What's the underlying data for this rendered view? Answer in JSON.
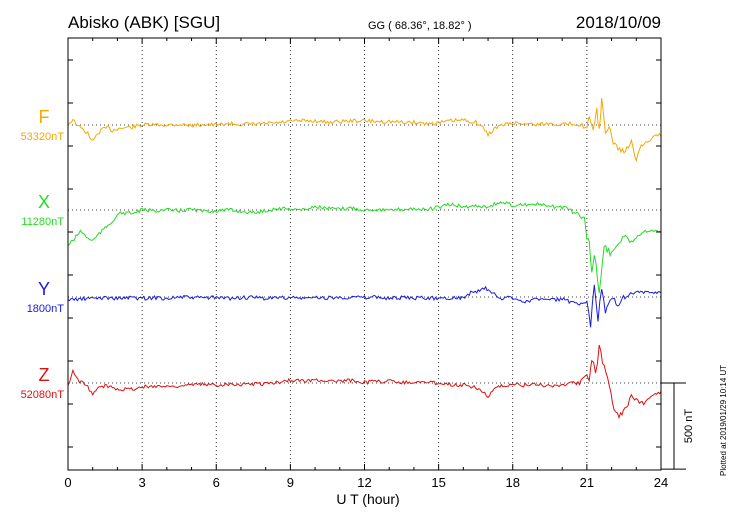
{
  "chart_data": {
    "type": "line",
    "title": "Abisko (ABK)  [SGU]",
    "coords": "GG ( 68.36°,  18.82° )",
    "date": "2018/10/09",
    "xlabel": "U T (hour)",
    "xlim": [
      0,
      24
    ],
    "xticks": [
      0,
      3,
      6,
      9,
      12,
      15,
      18,
      21,
      24
    ],
    "scale_label": "500 nT",
    "plotted_text": "Plotted at 2019/01/29 10:14 UT",
    "grid": true,
    "series": [
      {
        "name": "F",
        "baseline_label": "53320nT",
        "color": "#f5a800",
        "units": "nT offset from baseline",
        "points": [
          [
            0,
            4
          ],
          [
            0.2,
            40
          ],
          [
            0.4,
            -10
          ],
          [
            0.6,
            -30
          ],
          [
            0.8,
            -60
          ],
          [
            1.0,
            -120
          ],
          [
            1.2,
            -60
          ],
          [
            1.4,
            -30
          ],
          [
            1.6,
            -20
          ],
          [
            1.8,
            -40
          ],
          [
            2.0,
            -25
          ],
          [
            2.3,
            -20
          ],
          [
            2.6,
            -15
          ],
          [
            3.0,
            0
          ],
          [
            3.5,
            0
          ],
          [
            4.0,
            0
          ],
          [
            4.5,
            5
          ],
          [
            5.0,
            -5
          ],
          [
            5.5,
            5
          ],
          [
            6.0,
            0
          ],
          [
            6.5,
            10
          ],
          [
            7.0,
            5
          ],
          [
            7.5,
            5
          ],
          [
            8.0,
            10
          ],
          [
            8.5,
            15
          ],
          [
            9.0,
            25
          ],
          [
            9.5,
            30
          ],
          [
            10.0,
            30
          ],
          [
            10.5,
            20
          ],
          [
            11.0,
            25
          ],
          [
            11.5,
            30
          ],
          [
            12.0,
            30
          ],
          [
            12.5,
            25
          ],
          [
            13.0,
            25
          ],
          [
            13.5,
            20
          ],
          [
            14.0,
            20
          ],
          [
            14.5,
            10
          ],
          [
            15.0,
            15
          ],
          [
            15.5,
            30
          ],
          [
            16.0,
            35
          ],
          [
            16.5,
            20
          ],
          [
            16.8,
            -20
          ],
          [
            17.0,
            -70
          ],
          [
            17.3,
            -20
          ],
          [
            17.6,
            0
          ],
          [
            18.0,
            15
          ],
          [
            18.5,
            10
          ],
          [
            19.0,
            5
          ],
          [
            19.5,
            10
          ],
          [
            20.0,
            5
          ],
          [
            20.5,
            10
          ],
          [
            20.8,
            0
          ],
          [
            21.0,
            -30
          ],
          [
            21.1,
            60
          ],
          [
            21.25,
            -60
          ],
          [
            21.4,
            100
          ],
          [
            21.5,
            -30
          ],
          [
            21.6,
            180
          ],
          [
            21.75,
            -80
          ],
          [
            21.9,
            0
          ],
          [
            22.0,
            -100
          ],
          [
            22.2,
            -150
          ],
          [
            22.5,
            -200
          ],
          [
            22.8,
            -120
          ],
          [
            23.0,
            -250
          ],
          [
            23.2,
            -150
          ],
          [
            23.5,
            -120
          ],
          [
            23.8,
            -60
          ],
          [
            24,
            -80
          ]
        ]
      },
      {
        "name": "X",
        "baseline_label": "11280nT",
        "color": "#22dd22",
        "units": "nT offset from baseline",
        "points": [
          [
            0,
            -250
          ],
          [
            0.2,
            -220
          ],
          [
            0.5,
            -150
          ],
          [
            0.8,
            -200
          ],
          [
            1.0,
            -220
          ],
          [
            1.2,
            -180
          ],
          [
            1.5,
            -130
          ],
          [
            1.8,
            -80
          ],
          [
            2.0,
            -30
          ],
          [
            2.3,
            -20
          ],
          [
            2.6,
            -25
          ],
          [
            3.0,
            0
          ],
          [
            3.5,
            -5
          ],
          [
            4.0,
            0
          ],
          [
            4.5,
            -5
          ],
          [
            5.0,
            5
          ],
          [
            5.5,
            -10
          ],
          [
            6.0,
            -5
          ],
          [
            6.5,
            0
          ],
          [
            7.0,
            -10
          ],
          [
            7.5,
            -20
          ],
          [
            8.0,
            -5
          ],
          [
            8.5,
            10
          ],
          [
            9.0,
            10
          ],
          [
            9.5,
            0
          ],
          [
            10.0,
            25
          ],
          [
            10.5,
            10
          ],
          [
            11.0,
            5
          ],
          [
            11.5,
            15
          ],
          [
            12.0,
            0
          ],
          [
            12.5,
            5
          ],
          [
            13.0,
            -5
          ],
          [
            13.5,
            5
          ],
          [
            14.0,
            10
          ],
          [
            14.5,
            0
          ],
          [
            15.0,
            20
          ],
          [
            15.5,
            40
          ],
          [
            16.0,
            20
          ],
          [
            16.5,
            30
          ],
          [
            17.0,
            25
          ],
          [
            17.5,
            55
          ],
          [
            18.0,
            35
          ],
          [
            18.5,
            40
          ],
          [
            19.0,
            40
          ],
          [
            19.5,
            25
          ],
          [
            20.0,
            20
          ],
          [
            20.3,
            0
          ],
          [
            20.6,
            -30
          ],
          [
            20.9,
            -60
          ],
          [
            21.0,
            -200
          ],
          [
            21.1,
            -230
          ],
          [
            21.2,
            -450
          ],
          [
            21.3,
            -300
          ],
          [
            21.5,
            -600
          ],
          [
            21.7,
            -250
          ],
          [
            22.0,
            -320
          ],
          [
            22.2,
            -250
          ],
          [
            22.5,
            -180
          ],
          [
            22.8,
            -230
          ],
          [
            23.0,
            -190
          ],
          [
            23.3,
            -150
          ],
          [
            23.6,
            -140
          ],
          [
            24,
            -160
          ]
        ]
      },
      {
        "name": "Y",
        "baseline_label": "1800nT",
        "color": "#1a1ae6",
        "units": "nT offset from baseline",
        "points": [
          [
            0,
            -20
          ],
          [
            0.5,
            -15
          ],
          [
            1.0,
            -10
          ],
          [
            1.5,
            -5
          ],
          [
            2.0,
            -10
          ],
          [
            2.5,
            -5
          ],
          [
            3.0,
            -10
          ],
          [
            3.5,
            -5
          ],
          [
            4.0,
            -10
          ],
          [
            4.5,
            0
          ],
          [
            5.0,
            -5
          ],
          [
            5.5,
            -5
          ],
          [
            6.0,
            -5
          ],
          [
            6.5,
            -10
          ],
          [
            7.0,
            -5
          ],
          [
            7.5,
            -5
          ],
          [
            8.0,
            -10
          ],
          [
            8.5,
            -5
          ],
          [
            9.0,
            -5
          ],
          [
            9.5,
            -10
          ],
          [
            10.0,
            -5
          ],
          [
            10.5,
            -5
          ],
          [
            11.0,
            -5
          ],
          [
            11.5,
            0
          ],
          [
            12.0,
            -5
          ],
          [
            12.5,
            0
          ],
          [
            13.0,
            -10
          ],
          [
            13.5,
            -5
          ],
          [
            14.0,
            -10
          ],
          [
            14.5,
            -5
          ],
          [
            15.0,
            -10
          ],
          [
            15.5,
            -5
          ],
          [
            16.0,
            -5
          ],
          [
            16.3,
            30
          ],
          [
            16.6,
            40
          ],
          [
            16.9,
            60
          ],
          [
            17.2,
            30
          ],
          [
            17.5,
            -20
          ],
          [
            17.8,
            0
          ],
          [
            18.0,
            -10
          ],
          [
            18.5,
            -30
          ],
          [
            19.0,
            -15
          ],
          [
            19.5,
            -20
          ],
          [
            20.0,
            -15
          ],
          [
            20.4,
            -40
          ],
          [
            20.7,
            -60
          ],
          [
            21.0,
            -40
          ],
          [
            21.15,
            -200
          ],
          [
            21.3,
            100
          ],
          [
            21.45,
            -180
          ],
          [
            21.6,
            80
          ],
          [
            21.75,
            -90
          ],
          [
            22.0,
            0
          ],
          [
            22.3,
            -50
          ],
          [
            22.6,
            10
          ],
          [
            23.0,
            40
          ],
          [
            23.3,
            30
          ],
          [
            23.6,
            25
          ],
          [
            24,
            30
          ]
        ]
      },
      {
        "name": "Z",
        "baseline_label": "52080nT",
        "color": "#e01010",
        "units": "nT offset from baseline",
        "points": [
          [
            0,
            -20
          ],
          [
            0.2,
            80
          ],
          [
            0.4,
            20
          ],
          [
            0.6,
            0
          ],
          [
            0.8,
            -30
          ],
          [
            1.0,
            -80
          ],
          [
            1.2,
            -40
          ],
          [
            1.5,
            -20
          ],
          [
            1.8,
            -30
          ],
          [
            2.0,
            -40
          ],
          [
            2.5,
            -45
          ],
          [
            3.0,
            -30
          ],
          [
            3.5,
            -20
          ],
          [
            4.0,
            -25
          ],
          [
            4.5,
            -20
          ],
          [
            5.0,
            -15
          ],
          [
            5.5,
            -10
          ],
          [
            6.0,
            -15
          ],
          [
            6.5,
            -5
          ],
          [
            7.0,
            -10
          ],
          [
            7.5,
            -5
          ],
          [
            8.0,
            -5
          ],
          [
            8.5,
            5
          ],
          [
            9.0,
            20
          ],
          [
            9.5,
            15
          ],
          [
            10.0,
            20
          ],
          [
            10.5,
            20
          ],
          [
            11.0,
            10
          ],
          [
            11.5,
            20
          ],
          [
            12.0,
            5
          ],
          [
            12.5,
            10
          ],
          [
            13.0,
            15
          ],
          [
            13.5,
            5
          ],
          [
            14.0,
            5
          ],
          [
            14.5,
            5
          ],
          [
            15.0,
            0
          ],
          [
            15.5,
            -10
          ],
          [
            16.0,
            -15
          ],
          [
            16.5,
            -30
          ],
          [
            16.8,
            -60
          ],
          [
            17.0,
            -100
          ],
          [
            17.3,
            -40
          ],
          [
            17.6,
            -20
          ],
          [
            18.0,
            -10
          ],
          [
            18.5,
            -15
          ],
          [
            19.0,
            -10
          ],
          [
            19.5,
            -20
          ],
          [
            20.0,
            -15
          ],
          [
            20.4,
            10
          ],
          [
            20.7,
            -5
          ],
          [
            21.0,
            60
          ],
          [
            21.1,
            0
          ],
          [
            21.2,
            180
          ],
          [
            21.35,
            60
          ],
          [
            21.5,
            260
          ],
          [
            21.7,
            120
          ],
          [
            21.9,
            0
          ],
          [
            22.1,
            -180
          ],
          [
            22.3,
            -230
          ],
          [
            22.6,
            -180
          ],
          [
            22.8,
            -90
          ],
          [
            23.0,
            -120
          ],
          [
            23.3,
            -150
          ],
          [
            23.6,
            -90
          ],
          [
            24,
            -60
          ]
        ]
      }
    ]
  }
}
